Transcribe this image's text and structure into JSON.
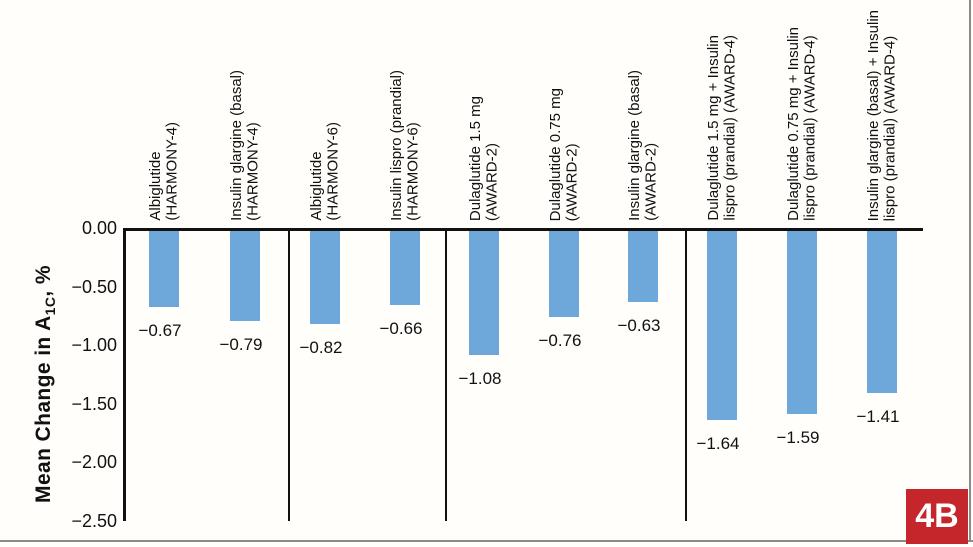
{
  "figure": {
    "badge_label": "4B",
    "background_color": "#fffefa",
    "bar_color": "#6ea8da",
    "badge_color": "#c4262c",
    "frame_color": "#8b8b8b",
    "axis_color": "#111111"
  },
  "y_axis": {
    "title_main": "Mean Change in A",
    "title_subscript": "1C",
    "title_suffix": ", %",
    "tick_labels": [
      "0.00",
      "−0.50",
      "−1.00",
      "−1.50",
      "−2.00",
      "−2.50"
    ],
    "tick_values": [
      0,
      -0.5,
      -1.0,
      -1.5,
      -2.0,
      -2.5
    ]
  },
  "chart_data": {
    "type": "bar",
    "ylabel": "Mean Change in A1C, %",
    "ylim": [
      -2.5,
      0
    ],
    "yticks": [
      0,
      -0.5,
      -1.0,
      -1.5,
      -2.0,
      -2.5
    ],
    "grid": false,
    "legend": false,
    "groups": [
      {
        "trial": "HARMONY-4",
        "bar_count": 2
      },
      {
        "trial": "HARMONY-6",
        "bar_count": 2
      },
      {
        "trial": "AWARD-2",
        "bar_count": 3
      },
      {
        "trial": "AWARD-4",
        "bar_count": 3
      }
    ],
    "bars": [
      {
        "label_lines": [
          "Albiglutide",
          "(HARMONY-4)"
        ],
        "value": -0.67,
        "value_label": "−0.67"
      },
      {
        "label_lines": [
          "Insulin glargine (basal)",
          "(HARMONY-4)"
        ],
        "value": -0.79,
        "value_label": "−0.79"
      },
      {
        "label_lines": [
          "Albiglutide",
          "(HARMONY-6)"
        ],
        "value": -0.82,
        "value_label": "−0.82"
      },
      {
        "label_lines": [
          "Insulin lispro (prandial)",
          "(HARMONY-6)"
        ],
        "value": -0.66,
        "value_label": "−0.66"
      },
      {
        "label_lines": [
          "Dulaglutide 1.5 mg",
          "(AWARD-2)"
        ],
        "value": -1.08,
        "value_label": "−1.08"
      },
      {
        "label_lines": [
          "Dulaglutide 0.75 mg",
          "(AWARD-2)"
        ],
        "value": -0.76,
        "value_label": "−0.76"
      },
      {
        "label_lines": [
          "Insulin glargine (basal)",
          "(AWARD-2)"
        ],
        "value": -0.63,
        "value_label": "−0.63"
      },
      {
        "label_lines": [
          "Dulaglutide 1.5 mg + Insulin",
          "lispro (prandial) (AWARD-4)"
        ],
        "value": -1.64,
        "value_label": "−1.64"
      },
      {
        "label_lines": [
          "Dulaglutide 0.75 mg + Insulin",
          "lispro (prandial) (AWARD-4)"
        ],
        "value": -1.59,
        "value_label": "−1.59"
      },
      {
        "label_lines": [
          "Insulin glargine (basal) + Insulin",
          "lispro (prandial) (AWARD-4)"
        ],
        "value": -1.41,
        "value_label": "−1.41"
      }
    ]
  }
}
